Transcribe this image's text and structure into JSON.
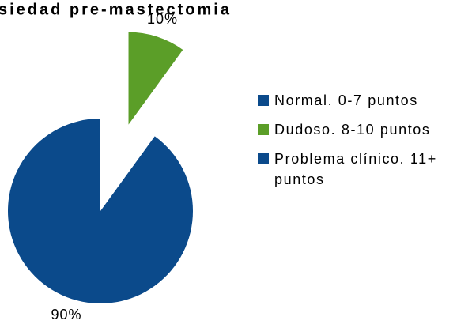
{
  "chart_data": {
    "type": "pie",
    "title": "siedad pre-mastectomia",
    "categories": [
      "Normal. 0-7 puntos",
      "Dudoso. 8-10 puntos",
      "Problema clínico. 11+ puntos"
    ],
    "values": [
      0,
      10,
      90
    ],
    "value_labels": [
      null,
      "10%",
      "90%"
    ],
    "colors": [
      "#0b4a8b",
      "#5b9e28",
      "#0b4a8b"
    ],
    "exploded": [
      false,
      true,
      false
    ],
    "legend": "right"
  }
}
